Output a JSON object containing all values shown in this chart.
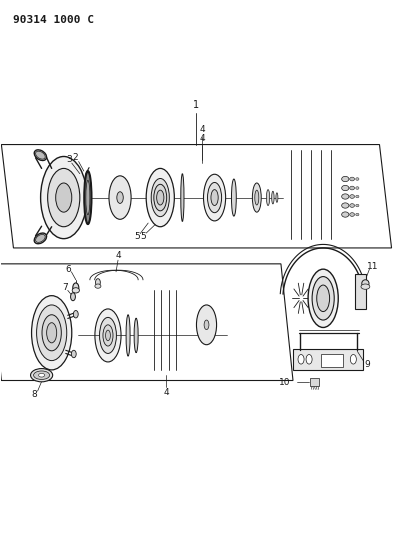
{
  "title": "90314 1000 C",
  "bg_color": "#ffffff",
  "line_color": "#1a1a1a",
  "title_fontsize": 8,
  "fig_width": 4.05,
  "fig_height": 5.33,
  "dpi": 100,
  "top_box": {
    "x": [
      0.03,
      0.97,
      0.94,
      0.0
    ],
    "y": [
      0.535,
      0.535,
      0.73,
      0.73
    ]
  },
  "bot_box": {
    "x": [
      0.0,
      0.72,
      0.69,
      -0.03
    ],
    "y": [
      0.29,
      0.29,
      0.505,
      0.505
    ]
  }
}
